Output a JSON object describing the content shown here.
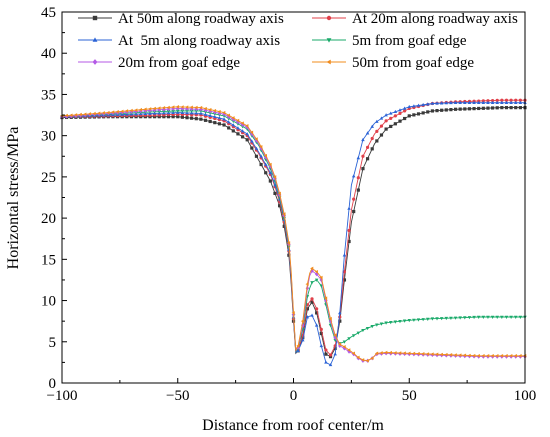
{
  "chart_data": {
    "type": "line",
    "title": "",
    "xlabel": "Distance from roof center/m",
    "ylabel": "Horizontal stress/MPa",
    "xlim": [
      -100,
      100
    ],
    "ylim": [
      0,
      45
    ],
    "xticks": [
      -100,
      -50,
      0,
      50,
      100
    ],
    "yticks": [
      0,
      5,
      10,
      15,
      20,
      25,
      30,
      35,
      40,
      45
    ],
    "grid": false,
    "legend_position": "top",
    "series": [
      {
        "name": "At 50m along roadway axis",
        "color": "#3a3a3a",
        "marker": "square",
        "x": [
          -100,
          -80,
          -60,
          -50,
          -40,
          -30,
          -20,
          -15,
          -10,
          -8,
          -6,
          -4,
          -2,
          -1,
          0,
          1,
          2,
          4,
          6,
          8,
          10,
          12,
          14,
          16,
          18,
          20,
          22,
          25,
          30,
          35,
          40,
          50,
          60,
          70,
          80,
          90,
          100
        ],
        "y": [
          32.2,
          32.3,
          32.3,
          32.3,
          32.0,
          31.3,
          29.5,
          27.0,
          24.5,
          23.0,
          21.5,
          19.0,
          15.5,
          12.0,
          7.5,
          3.6,
          3.9,
          5.5,
          9.0,
          9.8,
          8.5,
          6.0,
          3.5,
          3.2,
          4.2,
          7.5,
          12.5,
          19.5,
          26.0,
          29.0,
          30.8,
          32.4,
          33.0,
          33.2,
          33.3,
          33.4,
          33.4
        ]
      },
      {
        "name": "At 20m along roadway axis",
        "color": "#e0404a",
        "marker": "circle",
        "x": [
          -100,
          -80,
          -60,
          -50,
          -40,
          -30,
          -20,
          -15,
          -10,
          -8,
          -6,
          -4,
          -2,
          -1,
          0,
          1,
          2,
          4,
          6,
          8,
          10,
          12,
          14,
          16,
          18,
          20,
          22,
          25,
          30,
          35,
          40,
          50,
          60,
          70,
          80,
          90,
          100
        ],
        "y": [
          32.3,
          32.4,
          32.5,
          32.6,
          32.5,
          31.8,
          30.0,
          27.8,
          25.3,
          23.8,
          22.0,
          19.5,
          16.0,
          12.5,
          7.8,
          3.7,
          4.0,
          5.8,
          9.5,
          10.2,
          9.0,
          6.5,
          4.0,
          3.4,
          4.5,
          8.0,
          13.5,
          21.0,
          27.5,
          30.2,
          31.8,
          33.3,
          33.9,
          34.1,
          34.2,
          34.3,
          34.3
        ]
      },
      {
        "name": "At  5m along roadway axis",
        "color": "#2b63d6",
        "marker": "triangle-up",
        "x": [
          -100,
          -80,
          -60,
          -50,
          -40,
          -30,
          -20,
          -15,
          -10,
          -8,
          -6,
          -4,
          -2,
          -1,
          0,
          1,
          2,
          4,
          6,
          8,
          10,
          12,
          14,
          16,
          18,
          20,
          22,
          25,
          30,
          35,
          40,
          50,
          60,
          70,
          80,
          90,
          100
        ],
        "y": [
          32.3,
          32.5,
          32.7,
          32.8,
          32.7,
          32.0,
          30.2,
          28.0,
          25.5,
          24.0,
          22.3,
          19.8,
          16.2,
          12.7,
          8.0,
          3.7,
          3.9,
          5.2,
          8.0,
          8.2,
          7.0,
          4.5,
          2.5,
          2.2,
          3.5,
          8.5,
          15.5,
          24.0,
          29.5,
          31.5,
          32.5,
          33.5,
          33.9,
          34.0,
          34.0,
          34.0,
          34.0
        ]
      },
      {
        "name": "5m from goaf edge",
        "color": "#1aaa6a",
        "marker": "triangle-down",
        "x": [
          -100,
          -80,
          -60,
          -50,
          -40,
          -30,
          -20,
          -15,
          -10,
          -8,
          -6,
          -4,
          -2,
          -1,
          0,
          1,
          2,
          4,
          6,
          7,
          8,
          10,
          12,
          14,
          16,
          18,
          20,
          22,
          25,
          30,
          35,
          40,
          50,
          60,
          70,
          80,
          90,
          100
        ],
        "y": [
          32.3,
          32.6,
          32.9,
          33.0,
          33.0,
          32.4,
          30.8,
          28.8,
          26.0,
          24.5,
          22.5,
          20.0,
          16.5,
          13.0,
          8.2,
          3.8,
          4.2,
          6.5,
          10.5,
          11.5,
          12.2,
          12.5,
          11.8,
          9.5,
          7.0,
          5.2,
          4.8,
          5.0,
          5.6,
          6.4,
          7.0,
          7.3,
          7.6,
          7.8,
          7.9,
          8.0,
          8.0,
          8.0
        ]
      },
      {
        "name": "20m from goaf edge",
        "color": "#b45ae6",
        "marker": "diamond",
        "x": [
          -100,
          -80,
          -60,
          -50,
          -40,
          -30,
          -20,
          -15,
          -10,
          -8,
          -6,
          -4,
          -2,
          -1,
          0,
          1,
          2,
          4,
          6,
          7,
          8,
          10,
          12,
          14,
          16,
          18,
          20,
          22,
          24,
          26,
          28,
          30,
          32,
          34,
          36,
          40,
          50,
          60,
          70,
          80,
          90,
          100
        ],
        "y": [
          32.3,
          32.7,
          33.1,
          33.3,
          33.2,
          32.6,
          31.0,
          29.0,
          26.3,
          24.8,
          22.8,
          20.3,
          16.8,
          13.2,
          8.3,
          3.9,
          4.3,
          7.0,
          11.5,
          13.0,
          13.6,
          13.2,
          12.5,
          10.0,
          7.5,
          5.5,
          4.5,
          4.2,
          3.8,
          3.5,
          3.0,
          2.7,
          2.7,
          3.0,
          3.5,
          3.6,
          3.5,
          3.4,
          3.3,
          3.2,
          3.2,
          3.2
        ]
      },
      {
        "name": "50m from goaf edge",
        "color": "#f08c1e",
        "marker": "triangle-left",
        "x": [
          -100,
          -80,
          -60,
          -50,
          -40,
          -30,
          -20,
          -15,
          -10,
          -8,
          -6,
          -4,
          -2,
          -1,
          0,
          1,
          2,
          4,
          6,
          7,
          8,
          10,
          12,
          14,
          16,
          18,
          20,
          22,
          24,
          26,
          28,
          30,
          32,
          34,
          36,
          40,
          50,
          60,
          70,
          80,
          90,
          100
        ],
        "y": [
          32.4,
          32.8,
          33.3,
          33.5,
          33.4,
          32.8,
          31.2,
          29.2,
          26.5,
          25.0,
          23.0,
          20.5,
          17.0,
          13.5,
          8.5,
          4.0,
          4.5,
          7.5,
          12.0,
          13.3,
          13.9,
          13.5,
          12.8,
          10.3,
          7.8,
          5.8,
          4.7,
          4.4,
          4.0,
          3.6,
          3.1,
          2.8,
          2.7,
          3.0,
          3.6,
          3.7,
          3.6,
          3.5,
          3.4,
          3.3,
          3.3,
          3.3
        ]
      }
    ]
  }
}
